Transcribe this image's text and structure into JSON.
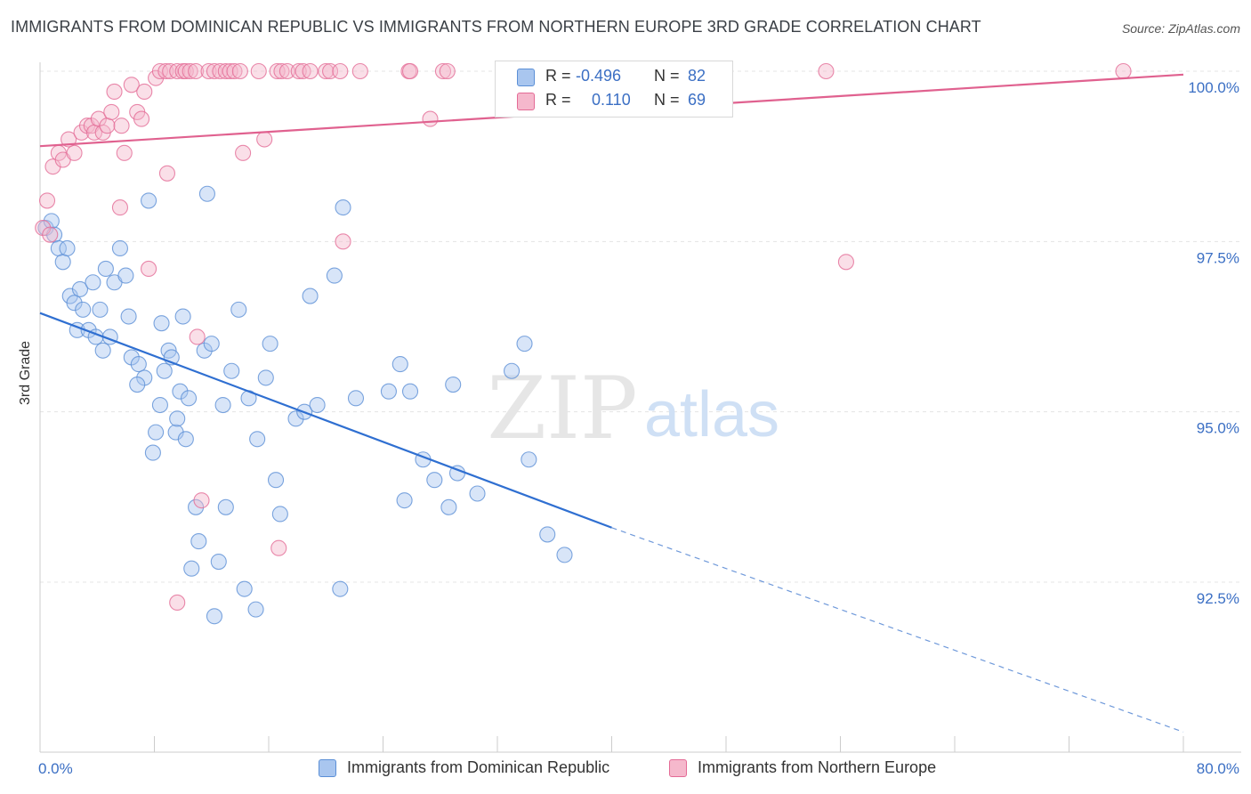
{
  "title": "IMMIGRANTS FROM DOMINICAN REPUBLIC VS IMMIGRANTS FROM NORTHERN EUROPE 3RD GRADE CORRELATION CHART",
  "source": "Source: ZipAtlas.com",
  "colors": {
    "blue": "#5b8fd6",
    "blue_fill": "#a9c6ef",
    "pink": "#e46b96",
    "pink_fill": "#f5b8cc",
    "tick": "#3b6fc4"
  },
  "watermark": {
    "zip": "ZIP",
    "atlas": "atlas"
  },
  "legend_box": {
    "rows": [
      {
        "r_label": "R =",
        "r_value": "-0.496",
        "n_label": "N =",
        "n_value": "82"
      },
      {
        "r_label": "R =",
        "r_value": "0.110",
        "n_label": "N =",
        "n_value": "69"
      }
    ]
  },
  "chart_data": {
    "type": "scatter",
    "title": "IMMIGRANTS FROM DOMINICAN REPUBLIC VS IMMIGRANTS FROM NORTHERN EUROPE 3RD GRADE CORRELATION CHART",
    "xlabel": "",
    "ylabel": "3rd Grade",
    "xlim": [
      0.0,
      80.0
    ],
    "ylim": [
      90.2,
      100.3
    ],
    "x_tick_labels": [
      "0.0%",
      "80.0%"
    ],
    "y_ticks": [
      92.5,
      95.0,
      97.5,
      100.0
    ],
    "y_tick_labels": [
      "92.5%",
      "95.0%",
      "97.5%",
      "100.0%"
    ],
    "legend_placement": "bottom",
    "series": [
      {
        "name": "Immigrants from Dominican Republic",
        "R": -0.496,
        "N": 82,
        "trend": {
          "x0": 0.0,
          "y0": 96.45,
          "x1": 40.0,
          "y1": 93.3,
          "x_dash_end": 80.0,
          "y_dash_end": 90.3
        },
        "points": [
          [
            0.4,
            97.7
          ],
          [
            0.8,
            97.8
          ],
          [
            1.0,
            97.6
          ],
          [
            1.3,
            97.4
          ],
          [
            1.6,
            97.2
          ],
          [
            1.9,
            97.4
          ],
          [
            2.1,
            96.7
          ],
          [
            2.4,
            96.6
          ],
          [
            2.8,
            96.8
          ],
          [
            3.0,
            96.5
          ],
          [
            2.6,
            96.2
          ],
          [
            3.4,
            96.2
          ],
          [
            3.7,
            96.9
          ],
          [
            3.9,
            96.1
          ],
          [
            4.2,
            96.5
          ],
          [
            4.4,
            95.9
          ],
          [
            4.6,
            97.1
          ],
          [
            4.9,
            96.1
          ],
          [
            5.2,
            96.9
          ],
          [
            5.6,
            97.4
          ],
          [
            6.0,
            97.0
          ],
          [
            6.2,
            96.4
          ],
          [
            6.4,
            95.8
          ],
          [
            6.9,
            95.7
          ],
          [
            7.3,
            95.5
          ],
          [
            7.6,
            98.1
          ],
          [
            7.9,
            94.4
          ],
          [
            8.1,
            94.7
          ],
          [
            8.4,
            95.1
          ],
          [
            8.7,
            95.6
          ],
          [
            9.0,
            95.9
          ],
          [
            9.2,
            95.8
          ],
          [
            9.5,
            94.7
          ],
          [
            9.8,
            95.3
          ],
          [
            10.0,
            96.4
          ],
          [
            10.2,
            94.6
          ],
          [
            10.4,
            95.2
          ],
          [
            10.6,
            92.7
          ],
          [
            10.9,
            93.6
          ],
          [
            11.1,
            93.1
          ],
          [
            11.5,
            95.9
          ],
          [
            11.7,
            98.2
          ],
          [
            12.0,
            96.0
          ],
          [
            12.2,
            92.0
          ],
          [
            12.5,
            92.8
          ],
          [
            12.8,
            95.1
          ],
          [
            13.0,
            93.6
          ],
          [
            13.4,
            95.6
          ],
          [
            13.9,
            96.5
          ],
          [
            14.3,
            92.4
          ],
          [
            14.6,
            95.2
          ],
          [
            15.1,
            92.1
          ],
          [
            15.2,
            94.6
          ],
          [
            16.1,
            96.0
          ],
          [
            16.5,
            94.0
          ],
          [
            16.8,
            93.5
          ],
          [
            17.9,
            94.9
          ],
          [
            18.5,
            95.0
          ],
          [
            18.9,
            96.7
          ],
          [
            19.4,
            95.1
          ],
          [
            20.6,
            97.0
          ],
          [
            21.0,
            92.4
          ],
          [
            21.2,
            98.0
          ],
          [
            22.1,
            95.2
          ],
          [
            24.4,
            95.3
          ],
          [
            25.2,
            95.7
          ],
          [
            25.5,
            93.7
          ],
          [
            25.9,
            95.3
          ],
          [
            26.8,
            94.3
          ],
          [
            27.6,
            94.0
          ],
          [
            28.6,
            93.6
          ],
          [
            28.9,
            95.4
          ],
          [
            29.2,
            94.1
          ],
          [
            30.6,
            93.8
          ],
          [
            33.0,
            95.6
          ],
          [
            33.9,
            96.0
          ],
          [
            34.2,
            94.3
          ],
          [
            35.5,
            93.2
          ],
          [
            36.7,
            92.9
          ],
          [
            8.5,
            96.3
          ],
          [
            6.8,
            95.4
          ],
          [
            9.6,
            94.9
          ],
          [
            15.8,
            95.5
          ]
        ]
      },
      {
        "name": "Immigrants from Northern Europe",
        "R": 0.11,
        "N": 69,
        "trend": {
          "x0": 0.0,
          "y0": 98.9,
          "x1": 80.0,
          "y1": 99.95
        },
        "points": [
          [
            0.2,
            97.7
          ],
          [
            0.5,
            98.1
          ],
          [
            0.7,
            97.6
          ],
          [
            0.9,
            98.6
          ],
          [
            1.3,
            98.8
          ],
          [
            1.6,
            98.7
          ],
          [
            2.0,
            99.0
          ],
          [
            2.4,
            98.8
          ],
          [
            2.9,
            99.1
          ],
          [
            3.3,
            99.2
          ],
          [
            3.6,
            99.2
          ],
          [
            3.8,
            99.1
          ],
          [
            4.1,
            99.3
          ],
          [
            4.4,
            99.1
          ],
          [
            4.7,
            99.2
          ],
          [
            5.0,
            99.4
          ],
          [
            5.2,
            99.7
          ],
          [
            5.7,
            99.2
          ],
          [
            5.9,
            98.8
          ],
          [
            6.4,
            99.8
          ],
          [
            6.8,
            99.4
          ],
          [
            7.1,
            99.3
          ],
          [
            7.3,
            99.7
          ],
          [
            7.6,
            97.1
          ],
          [
            8.1,
            99.9
          ],
          [
            8.4,
            100.0
          ],
          [
            8.8,
            100.0
          ],
          [
            9.1,
            100.0
          ],
          [
            9.6,
            100.0
          ],
          [
            10.0,
            100.0
          ],
          [
            10.2,
            100.0
          ],
          [
            10.5,
            100.0
          ],
          [
            10.9,
            100.0
          ],
          [
            11.0,
            96.1
          ],
          [
            11.3,
            93.7
          ],
          [
            11.8,
            100.0
          ],
          [
            12.2,
            100.0
          ],
          [
            12.6,
            100.0
          ],
          [
            13.0,
            100.0
          ],
          [
            13.3,
            100.0
          ],
          [
            13.6,
            100.0
          ],
          [
            14.0,
            100.0
          ],
          [
            14.2,
            98.8
          ],
          [
            15.3,
            100.0
          ],
          [
            15.7,
            99.0
          ],
          [
            16.6,
            100.0
          ],
          [
            16.9,
            100.0
          ],
          [
            17.3,
            100.0
          ],
          [
            18.1,
            100.0
          ],
          [
            18.4,
            100.0
          ],
          [
            18.9,
            100.0
          ],
          [
            20.0,
            100.0
          ],
          [
            20.3,
            100.0
          ],
          [
            21.0,
            100.0
          ],
          [
            21.2,
            97.5
          ],
          [
            22.4,
            100.0
          ],
          [
            25.8,
            100.0
          ],
          [
            25.9,
            100.0
          ],
          [
            27.3,
            99.3
          ],
          [
            28.2,
            100.0
          ],
          [
            28.5,
            100.0
          ],
          [
            33.0,
            100.0
          ],
          [
            55.0,
            100.0
          ],
          [
            56.4,
            97.2
          ],
          [
            75.8,
            100.0
          ],
          [
            9.6,
            92.2
          ],
          [
            16.7,
            93.0
          ],
          [
            5.6,
            98.0
          ],
          [
            8.9,
            98.5
          ]
        ]
      }
    ]
  }
}
